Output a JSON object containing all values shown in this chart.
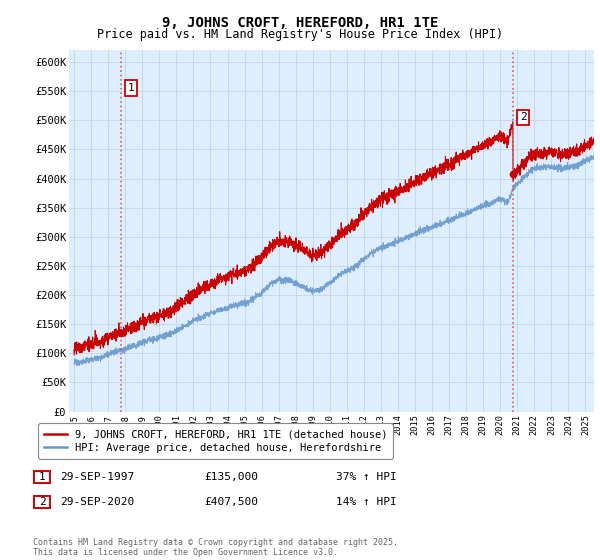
{
  "title": "9, JOHNS CROFT, HEREFORD, HR1 1TE",
  "subtitle": "Price paid vs. HM Land Registry's House Price Index (HPI)",
  "ylabel_ticks": [
    "£0",
    "£50K",
    "£100K",
    "£150K",
    "£200K",
    "£250K",
    "£300K",
    "£350K",
    "£400K",
    "£450K",
    "£500K",
    "£550K",
    "£600K"
  ],
  "ytick_values": [
    0,
    50000,
    100000,
    150000,
    200000,
    250000,
    300000,
    350000,
    400000,
    450000,
    500000,
    550000,
    600000
  ],
  "xlim_start": 1994.7,
  "xlim_end": 2025.5,
  "ylim_min": 0,
  "ylim_max": 620000,
  "sale1_date": 1997.75,
  "sale1_price": 135000,
  "sale2_date": 2020.75,
  "sale2_price": 407500,
  "red_line_color": "#cc0000",
  "blue_line_color": "#6699cc",
  "vline_color": "#dd4444",
  "grid_color": "#c8d8e8",
  "plot_bg_color": "#ddeeff",
  "fig_bg_color": "#ffffff",
  "legend_label_red": "9, JOHNS CROFT, HEREFORD, HR1 1TE (detached house)",
  "legend_label_blue": "HPI: Average price, detached house, Herefordshire",
  "table_row1": [
    "1",
    "29-SEP-1997",
    "£135,000",
    "37% ↑ HPI"
  ],
  "table_row2": [
    "2",
    "29-SEP-2020",
    "£407,500",
    "14% ↑ HPI"
  ],
  "footnote": "Contains HM Land Registry data © Crown copyright and database right 2025.\nThis data is licensed under the Open Government Licence v3.0.",
  "title_fontsize": 10,
  "subtitle_fontsize": 8.5,
  "tick_fontsize": 7.5,
  "legend_fontsize": 7.5,
  "table_fontsize": 8,
  "footnote_fontsize": 6
}
